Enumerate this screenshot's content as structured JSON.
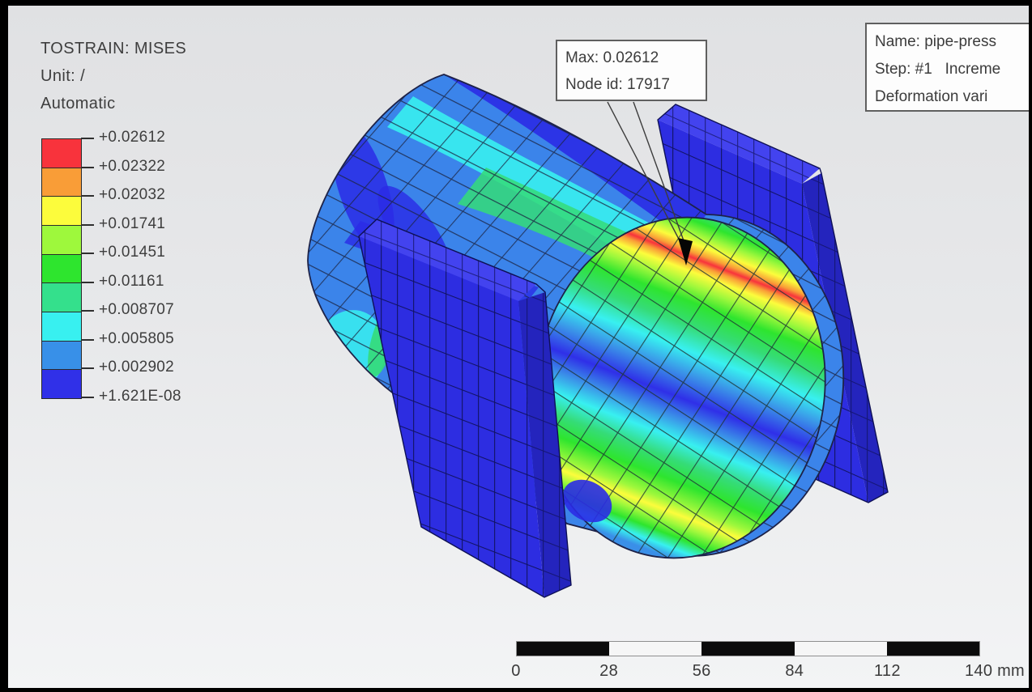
{
  "legend": {
    "title": "TOSTRAIN: MISES",
    "unit": "Unit: /",
    "mode": "Automatic",
    "ticks": [
      "+0.02612",
      "+0.02322",
      "+0.02032",
      "+0.01741",
      "+0.01451",
      "+0.01161",
      "+0.008707",
      "+0.005805",
      "+0.002902",
      "+1.621E-08"
    ],
    "band_colors": [
      "#f8333c",
      "#f99d37",
      "#fcfc3c",
      "#9ef83c",
      "#2ee52e",
      "#34e08c",
      "#38f0f0",
      "#3890e8",
      "#3030e8"
    ]
  },
  "annotation": {
    "line1": "Max: 0.02612",
    "line2": "Node id: 17917"
  },
  "info_box": {
    "line1": "Name: pipe-press",
    "line2": "Step: #1   Increme",
    "line3": "Deformation vari"
  },
  "scale_bar": {
    "tick_labels": [
      "0",
      "28",
      "56",
      "84",
      "112"
    ],
    "end_label": "140 mm",
    "segment_colors": [
      "#0b0b0b",
      "#f6f6f6",
      "#0b0b0b",
      "#f6f6f6",
      "#0b0b0b"
    ]
  },
  "colors": {
    "plate_face": "#2d2de1",
    "background_top": "#e0e1e3",
    "background_bottom": "#f3f4f5"
  }
}
